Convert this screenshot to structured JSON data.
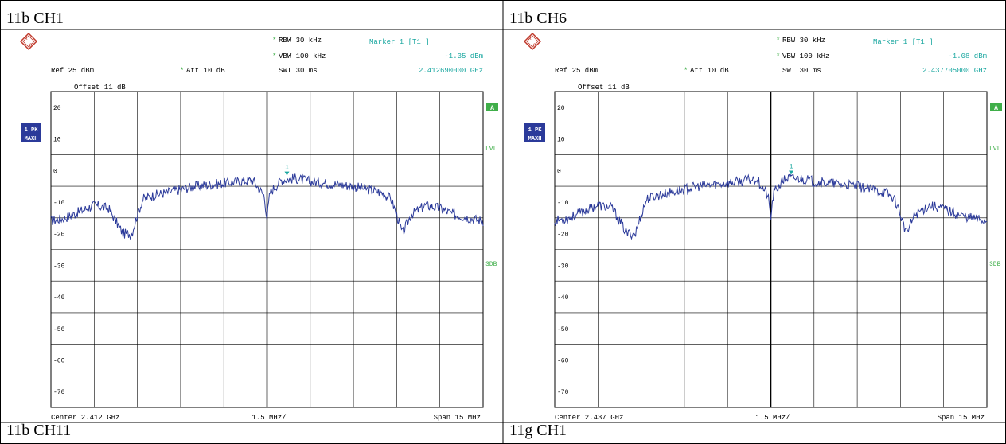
{
  "layout_titles": [
    "11b CH1",
    "11b CH6",
    "11b CH11",
    "11g CH1"
  ],
  "colors": {
    "trace": "#2b3a9a",
    "marker": "#1aa7a0",
    "label_blue": "#2b3a9a",
    "green": "#3fae49",
    "grid": "#000000"
  },
  "chart_data": [
    {
      "type": "line",
      "title": "11b CH1",
      "settings": {
        "rbw": "RBW 30 kHz",
        "vbw": "VBW 100 kHz",
        "swt": "SWT 30 ms",
        "ref": "Ref 25 dBm",
        "att": "Att 10 dB",
        "offset": "Offset 11 dB",
        "marker_title": "Marker 1 [T1 ]",
        "marker_level": "-1.35 dBm",
        "marker_freq": "2.412690000 GHz",
        "trace_label_1": "1 PK",
        "trace_label_2": "MAXH",
        "badge_a": "A",
        "side_lvl": "LVL",
        "side_3db": "3DB",
        "center": "Center 2.412 GHz",
        "per_div": "1.5 MHz/",
        "span": "Span 15 MHz"
      },
      "center_ghz": 2.412,
      "span_mhz": 15,
      "ylim": [
        -75,
        25
      ],
      "yticks": [
        20,
        10,
        0,
        -10,
        -20,
        -30,
        -40,
        -50,
        -60,
        -70
      ],
      "marker": {
        "x_mhz": 0.69,
        "y_dbm": -1.35,
        "label": "1"
      },
      "x_offset_mhz": [
        -7.5,
        -7.0,
        -6.5,
        -6.0,
        -5.5,
        -5.0,
        -4.7,
        -4.5,
        -4.3,
        -4.0,
        -3.5,
        -3.0,
        -2.5,
        -2.0,
        -1.5,
        -1.0,
        -0.5,
        -0.1,
        0.0,
        0.1,
        0.5,
        1.0,
        1.5,
        2.0,
        2.5,
        3.0,
        3.5,
        4.0,
        4.3,
        4.5,
        4.7,
        5.0,
        5.5,
        6.0,
        6.5,
        7.0,
        7.5
      ],
      "values": [
        -16,
        -15,
        -13,
        -11,
        -12,
        -20,
        -20,
        -14,
        -9,
        -8,
        -7,
        -6,
        -5,
        -4.5,
        -4,
        -3.5,
        -3,
        -8,
        -15,
        -7,
        -3,
        -2.5,
        -3.5,
        -4,
        -4.5,
        -5,
        -6,
        -7,
        -9,
        -14,
        -20,
        -14,
        -11,
        -12,
        -14,
        -15,
        -16
      ]
    },
    {
      "type": "line",
      "title": "11b CH6",
      "settings": {
        "rbw": "RBW 30 kHz",
        "vbw": "VBW 100 kHz",
        "swt": "SWT 30 ms",
        "ref": "Ref 25 dBm",
        "att": "Att 10 dB",
        "offset": "Offset 11 dB",
        "marker_title": "Marker 1 [T1 ]",
        "marker_level": "-1.08 dBm",
        "marker_freq": "2.437705000 GHz",
        "trace_label_1": "1 PK",
        "trace_label_2": "MAXH",
        "badge_a": "A",
        "side_lvl": "LVL",
        "side_3db": "3DB",
        "center": "Center 2.437 GHz",
        "per_div": "1.5 MHz/",
        "span": "Span 15 MHz"
      },
      "center_ghz": 2.437,
      "span_mhz": 15,
      "ylim": [
        -75,
        25
      ],
      "yticks": [
        20,
        10,
        0,
        -10,
        -20,
        -30,
        -40,
        -50,
        -60,
        -70
      ],
      "marker": {
        "x_mhz": 0.705,
        "y_dbm": -1.08,
        "label": "1"
      },
      "x_offset_mhz": [
        -7.5,
        -7.0,
        -6.5,
        -6.0,
        -5.5,
        -5.0,
        -4.7,
        -4.5,
        -4.3,
        -4.0,
        -3.5,
        -3.0,
        -2.5,
        -2.0,
        -1.5,
        -1.0,
        -0.5,
        -0.1,
        0.0,
        0.1,
        0.5,
        1.0,
        1.5,
        2.0,
        2.5,
        3.0,
        3.5,
        4.0,
        4.3,
        4.5,
        4.7,
        5.0,
        5.5,
        6.0,
        6.5,
        7.0,
        7.5
      ],
      "values": [
        -16,
        -15,
        -13,
        -11,
        -12,
        -20,
        -20,
        -14,
        -9,
        -8,
        -7,
        -6,
        -5,
        -4.5,
        -4,
        -3.5,
        -2.5,
        -8,
        -15,
        -7,
        -2.5,
        -2.5,
        -3.5,
        -4,
        -4.5,
        -5,
        -6,
        -7,
        -9,
        -14,
        -20,
        -14,
        -11,
        -12,
        -14,
        -15,
        -16
      ]
    }
  ]
}
